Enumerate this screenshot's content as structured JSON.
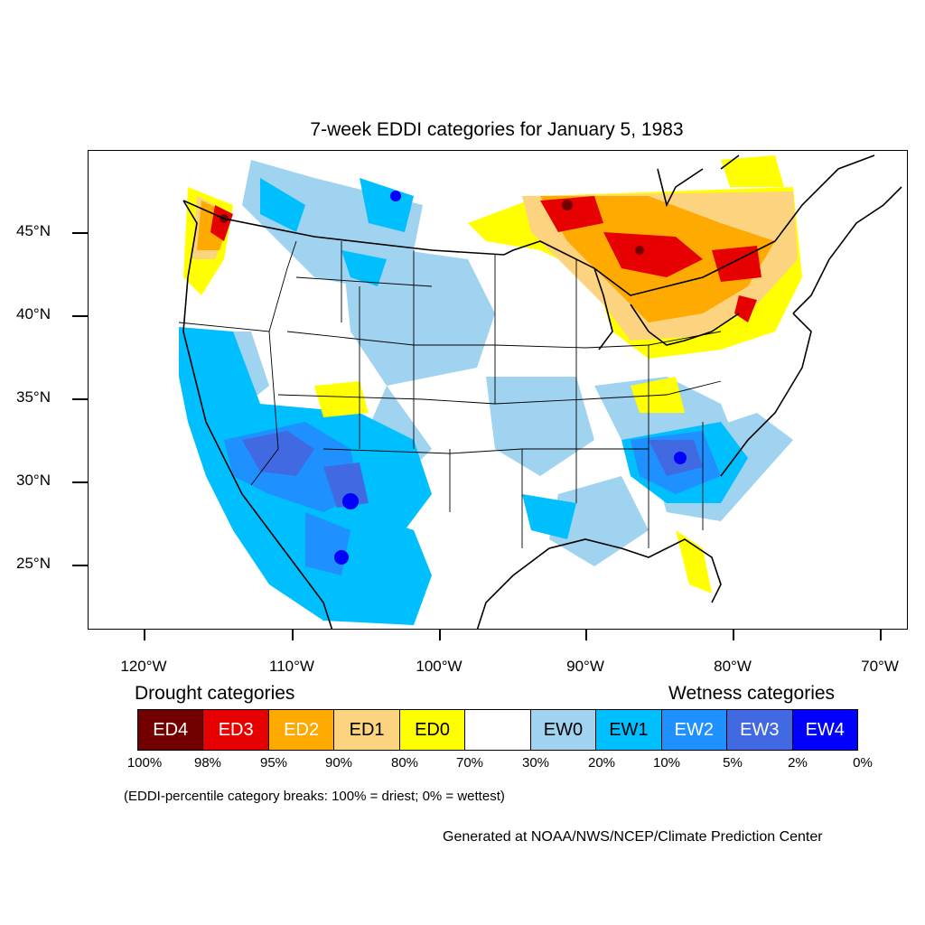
{
  "title": "7-week EDDI categories for January 5, 1983",
  "lat_labels": [
    "45°N",
    "40°N",
    "35°N",
    "30°N",
    "25°N"
  ],
  "lon_labels": [
    "120°W",
    "110°W",
    "100°W",
    "90°W",
    "80°W",
    "70°W"
  ],
  "legend": {
    "drought_heading": "Drought categories",
    "wetness_heading": "Wetness categories",
    "categories": [
      {
        "label": "ED4",
        "color": "#730000",
        "text_color": "#ffffff"
      },
      {
        "label": "ED3",
        "color": "#e60000",
        "text_color": "#ffffff"
      },
      {
        "label": "ED2",
        "color": "#ffaa00",
        "text_color": "#ffffff"
      },
      {
        "label": "ED1",
        "color": "#fcd37f",
        "text_color": "#000000"
      },
      {
        "label": "ED0",
        "color": "#ffff00",
        "text_color": "#000000"
      },
      {
        "label": "",
        "color": "#ffffff",
        "text_color": "#000000"
      },
      {
        "label": "EW0",
        "color": "#9fd3f0",
        "text_color": "#000000"
      },
      {
        "label": "EW1",
        "color": "#00bfff",
        "text_color": "#000000"
      },
      {
        "label": "EW2",
        "color": "#1e90ff",
        "text_color": "#ffffff"
      },
      {
        "label": "EW3",
        "color": "#4169e1",
        "text_color": "#ffffff"
      },
      {
        "label": "EW4",
        "color": "#0000ff",
        "text_color": "#ffffff"
      }
    ],
    "breaks": [
      "100%",
      "98%",
      "95%",
      "90%",
      "80%",
      "70%",
      "30%",
      "20%",
      "10%",
      "5%",
      "2%",
      "0%"
    ]
  },
  "note": "(EDDI-percentile category breaks: 100% = driest; 0% = wettest)",
  "credit": "Generated at NOAA/NWS/NCEP/Climate Prediction Center"
}
